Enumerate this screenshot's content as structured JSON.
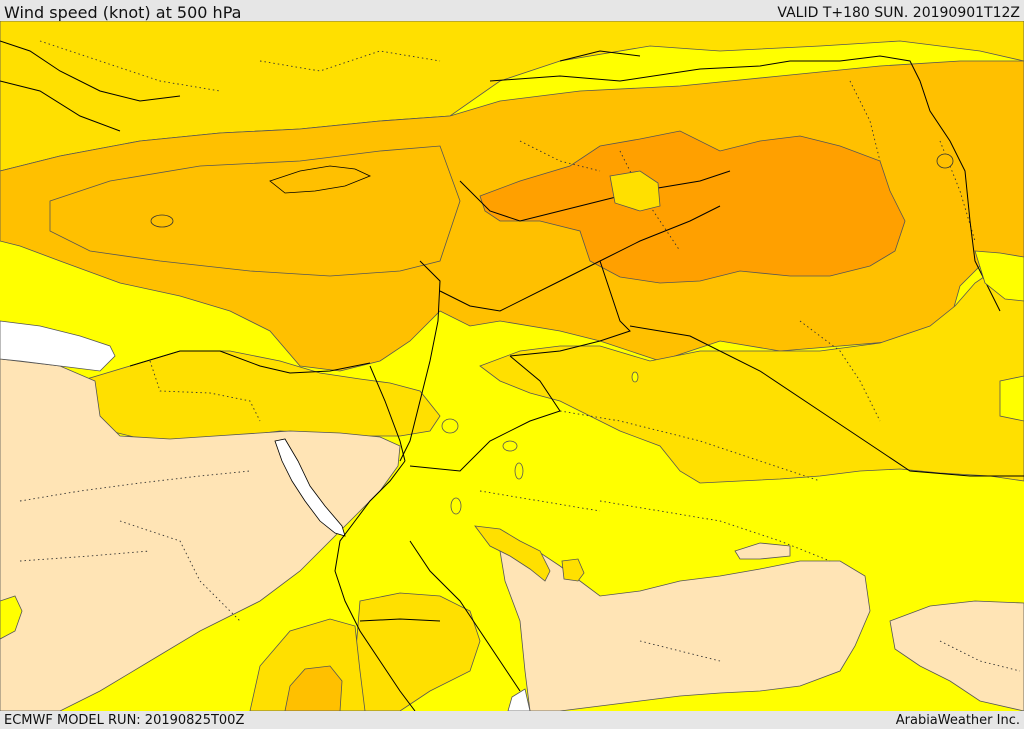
{
  "header": {
    "title": "Wind speed (knot) at 500 hPa",
    "valid": "VALID T+180 SUN. 20190901T12Z"
  },
  "footer": {
    "model_run": "ECMWF MODEL RUN: 20190825T00Z",
    "credit": "ArabiaWeather Inc."
  },
  "map": {
    "fill_colors": {
      "calm": "#ffe4b5",
      "light": "#ffff00",
      "moderate": "#ffe000",
      "strong": "#ffc000",
      "stronger": "#ffa000",
      "water_gap": "#ffffff"
    },
    "line_colors": {
      "borders": "#000000",
      "contours": "#555555"
    }
  }
}
